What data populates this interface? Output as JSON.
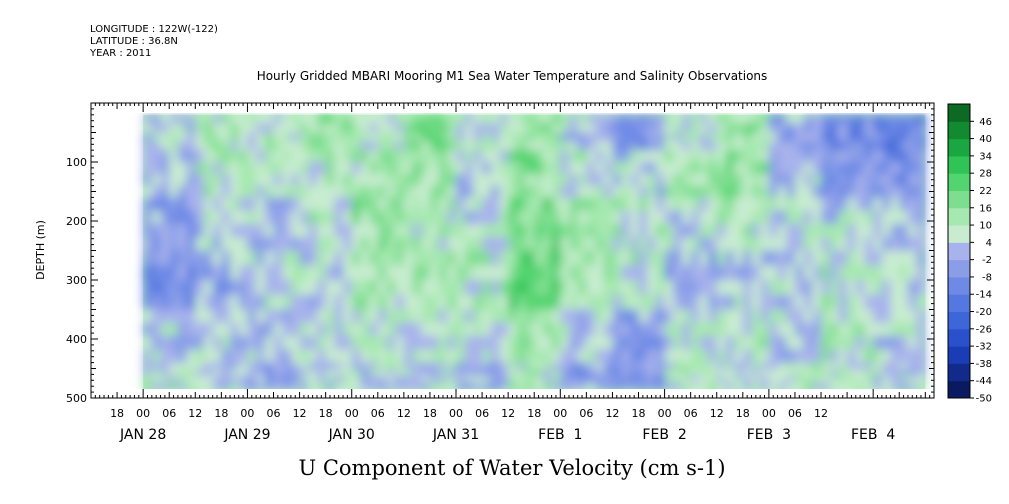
{
  "header": {
    "longitude": "LONGITUDE : 122W(-122)",
    "latitude": "LATITUDE : 36.8N",
    "year": "YEAR : 2011"
  },
  "chart_data": {
    "type": "heatmap",
    "title": "Hourly Gridded MBARI Mooring M1 Sea Water Temperature and Salinity Observations",
    "bottom_title": "U Component of Water Velocity (cm s-1)",
    "ylabel": "DEPTH (m)",
    "y_range_m": [
      0,
      500
    ],
    "y_inverted": true,
    "y_ticks": [
      100,
      200,
      300,
      400,
      500
    ],
    "y_tick_labels": [
      "100",
      "200",
      "300",
      "400",
      "500"
    ],
    "data_depth_range_m": [
      20,
      485
    ],
    "x_start": "2011-01-27T12:00",
    "x_end": "2011-02-04T14:00",
    "data_time_range": [
      "2011-01-28T00:00",
      "2011-02-04T12:00"
    ],
    "x_hour_labels": [
      "18",
      "00",
      "06",
      "12",
      "18",
      "00",
      "06",
      "12",
      "18",
      "00",
      "06",
      "12",
      "18",
      "00",
      "06",
      "12",
      "18",
      "00",
      "06",
      "12",
      "18",
      "00",
      "06",
      "12",
      "18",
      "00",
      "06",
      "12"
    ],
    "x_hour_label_times": [
      "2011-01-27T18:00",
      "2011-01-28T00:00",
      "2011-01-28T06:00",
      "2011-01-28T12:00",
      "2011-01-28T18:00",
      "2011-01-29T00:00",
      "2011-01-29T06:00",
      "2011-01-29T12:00",
      "2011-01-29T18:00",
      "2011-01-30T00:00",
      "2011-01-30T06:00",
      "2011-01-30T12:00",
      "2011-01-30T18:00",
      "2011-01-31T00:00",
      "2011-01-31T06:00",
      "2011-01-31T12:00",
      "2011-01-31T18:00",
      "2011-02-01T00:00",
      "2011-02-01T06:00",
      "2011-02-01T12:00",
      "2011-02-01T18:00",
      "2011-02-02T00:00",
      "2011-02-02T06:00",
      "2011-02-02T12:00",
      "2011-02-02T18:00",
      "2011-02-03T00:00",
      "2011-02-03T06:00",
      "2011-02-03T12:00"
    ],
    "day_labels": [
      "JAN 28",
      "JAN 29",
      "JAN 30",
      "JAN 31",
      "FEB  1",
      "FEB  2",
      "FEB  3",
      "FEB  4"
    ],
    "day_label_times": [
      "2011-01-28T00:00",
      "2011-01-29T00:00",
      "2011-01-30T00:00",
      "2011-01-31T00:00",
      "2011-02-01T00:00",
      "2011-02-02T00:00",
      "2011-02-03T00:00",
      "2011-02-04T00:00"
    ],
    "colorbar": {
      "levels": [
        -50,
        -44,
        -38,
        -32,
        -26,
        -20,
        -14,
        -8,
        -2,
        4,
        10,
        16,
        22,
        28,
        34,
        40,
        46
      ],
      "labels": [
        "-50",
        "-44",
        "-38",
        "-32",
        "-26",
        "-20",
        "-14",
        "-8",
        "-2",
        "4",
        "10",
        "16",
        "22",
        "28",
        "34",
        "40",
        "46"
      ],
      "colors": [
        "#0a1a60",
        "#112a8c",
        "#1a3cb4",
        "#2a50cc",
        "#3d66d8",
        "#5478e0",
        "#6e8ae6",
        "#8a9ee8",
        "#a8b2ec",
        "#c8ecd0",
        "#a6e8b0",
        "#7ede90",
        "#52d470",
        "#2fc455",
        "#1aa640",
        "#128a30",
        "#0c6a24"
      ]
    },
    "column_bands_profile": [
      {
        "time": "2011-01-28T00:00",
        "u_cm_s": [
          4,
          2,
          -4,
          -8,
          4,
          8
        ]
      },
      {
        "time": "2011-01-28T12:00",
        "u_cm_s": [
          12,
          10,
          6,
          -2,
          4,
          2
        ]
      },
      {
        "time": "2011-01-29T00:00",
        "u_cm_s": [
          10,
          8,
          4,
          6,
          2,
          -4
        ]
      },
      {
        "time": "2011-01-29T12:00",
        "u_cm_s": [
          14,
          12,
          8,
          4,
          6,
          4
        ]
      },
      {
        "time": "2011-01-30T00:00",
        "u_cm_s": [
          8,
          12,
          14,
          12,
          10,
          4
        ]
      },
      {
        "time": "2011-01-30T12:00",
        "u_cm_s": [
          18,
          14,
          10,
          12,
          8,
          4
        ]
      },
      {
        "time": "2011-01-31T00:00",
        "u_cm_s": [
          8,
          4,
          6,
          10,
          6,
          -2
        ]
      },
      {
        "time": "2011-01-31T12:00",
        "u_cm_s": [
          16,
          18,
          20,
          22,
          14,
          10
        ]
      },
      {
        "time": "2011-02-01T00:00",
        "u_cm_s": [
          4,
          8,
          14,
          12,
          4,
          -4
        ]
      },
      {
        "time": "2011-02-01T12:00",
        "u_cm_s": [
          -6,
          4,
          10,
          8,
          -4,
          -8
        ]
      },
      {
        "time": "2011-02-02T00:00",
        "u_cm_s": [
          8,
          12,
          6,
          -2,
          8,
          10
        ]
      },
      {
        "time": "2011-02-02T12:00",
        "u_cm_s": [
          14,
          16,
          10,
          4,
          8,
          6
        ]
      },
      {
        "time": "2011-02-03T00:00",
        "u_cm_s": [
          -4,
          2,
          6,
          4,
          2,
          8
        ]
      },
      {
        "time": "2011-02-03T12:00",
        "u_cm_s": [
          -10,
          -6,
          4,
          8,
          10,
          6
        ]
      },
      {
        "time": "2011-02-04T00:00",
        "u_cm_s": [
          -14,
          -8,
          2,
          6,
          4,
          2
        ]
      },
      {
        "time": "2011-02-04T12:00",
        "u_cm_s": [
          -18,
          -4,
          4,
          8,
          6,
          4
        ]
      }
    ],
    "profile_depths_m": [
      40,
      120,
      200,
      300,
      400,
      480
    ],
    "grid": false,
    "legend_placement": "right"
  }
}
